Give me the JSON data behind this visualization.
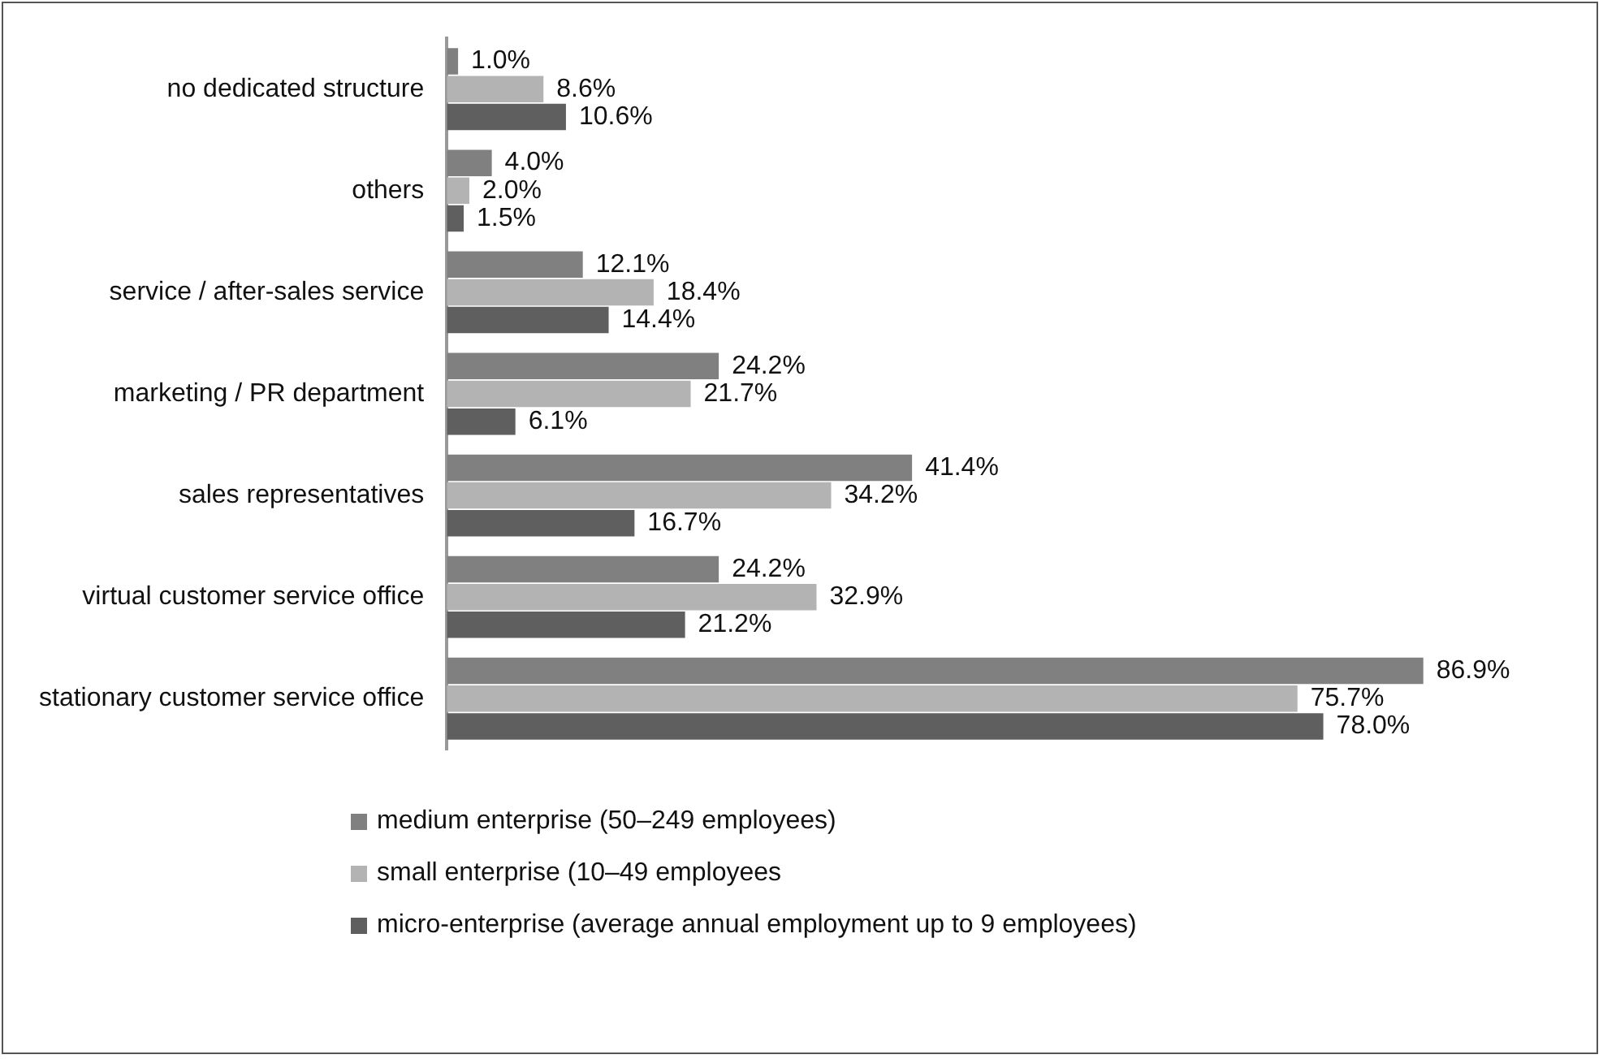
{
  "chart_data": {
    "type": "bar",
    "orientation": "horizontal",
    "tick_labels": "y",
    "legend": "bottom",
    "categories": [
      "no dedicated structure",
      "others",
      "service / after-sales service",
      "marketing / PR department",
      "sales representatives",
      "virtual customer service office",
      "stationary customer service office"
    ],
    "series": [
      {
        "name": "medium enterprise (50–249 employees)",
        "color": "#808080",
        "values": [
          1.0,
          4.0,
          12.1,
          24.2,
          41.4,
          24.2,
          86.9
        ],
        "value_labels": [
          "1.0%",
          "4.0%",
          "12.1%",
          "24.2%",
          "41.4%",
          "24.2%",
          "86.9%"
        ]
      },
      {
        "name": "small enterprise (10–49 employees",
        "color": "#b3b3b3",
        "values": [
          8.6,
          2.0,
          18.4,
          21.7,
          34.2,
          32.9,
          75.7
        ],
        "value_labels": [
          "8.6%",
          "2.0%",
          "18.4%",
          "21.7%",
          "34.2%",
          "32.9%",
          "75.7%"
        ]
      },
      {
        "name": "micro-enterprise (average annual employment up to 9 employees)",
        "color": "#5f5f5f",
        "values": [
          10.6,
          1.5,
          14.4,
          6.1,
          16.7,
          21.2,
          78.0
        ],
        "value_labels": [
          "10.6%",
          "1.5%",
          "14.4%",
          "6.1%",
          "16.7%",
          "21.2%",
          "78.0%"
        ]
      }
    ]
  }
}
